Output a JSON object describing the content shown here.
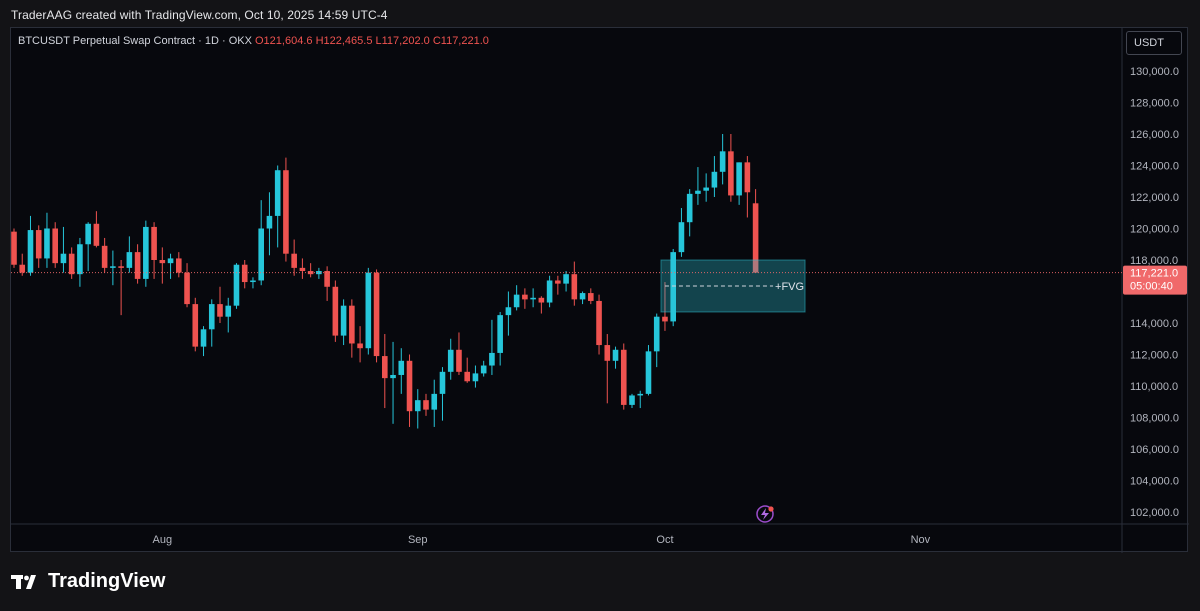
{
  "caption": "TraderAAG created with TradingView.com, Oct 10, 2025 14:59 UTC-4",
  "legend": {
    "symbol": "BTCUSDT Perpetual Swap Contract · 1D · OKX",
    "open": "O121,604.6",
    "high": "H122,465.5",
    "low": "L117,202.0",
    "close": "C117,221.0"
  },
  "currency_button": "USDT",
  "brand": "TradingView",
  "colors": {
    "up": "#26c6da",
    "down": "#ef5350",
    "fvg_zone": "#2ec4d6",
    "price_label": "#f0696a"
  },
  "chart_data": {
    "type": "candlestick",
    "symbol": "BTCUSDT",
    "interval": "1D",
    "exchange": "OKX",
    "y_ticks": [
      "130,000.0",
      "128,000.0",
      "126,000.0",
      "124,000.0",
      "122,000.0",
      "120,000.0",
      "118,000.0",
      "114,000.0",
      "112,000.0",
      "110,000.0",
      "108,000.0",
      "106,000.0",
      "104,000.0",
      "102,000.0"
    ],
    "x_ticks": [
      {
        "label": "Aug",
        "date": "2025-08-01"
      },
      {
        "label": "Sep",
        "date": "2025-09-01"
      },
      {
        "label": "Oct",
        "date": "2025-10-01"
      },
      {
        "label": "Nov",
        "date": "2025-11-01"
      }
    ],
    "first_date": "2025-07-14",
    "last_price": "117,221.0",
    "countdown": "05:00:40",
    "fvg": {
      "label": "+FVG",
      "top": 118000,
      "bottom": 114700,
      "mid": 116350,
      "start": "2025-10-01",
      "end": "2025-10-18"
    },
    "candles": [
      [
        119800,
        120000,
        117500,
        117700
      ],
      [
        117700,
        118400,
        117000,
        117200
      ],
      [
        117200,
        120800,
        117000,
        119900
      ],
      [
        119900,
        120200,
        117500,
        118100
      ],
      [
        118100,
        121000,
        117500,
        120000
      ],
      [
        120000,
        120400,
        117500,
        117800
      ],
      [
        117800,
        120100,
        117200,
        118400
      ],
      [
        118400,
        118800,
        116800,
        117100
      ],
      [
        117100,
        119400,
        116300,
        119000
      ],
      [
        119000,
        120400,
        117300,
        120300
      ],
      [
        120300,
        121100,
        118800,
        118900
      ],
      [
        118900,
        119400,
        117200,
        117500
      ],
      [
        117500,
        118600,
        116400,
        117600
      ],
      [
        117600,
        118000,
        114500,
        117500
      ],
      [
        117500,
        119500,
        117200,
        118500
      ],
      [
        118500,
        119000,
        116500,
        116800
      ],
      [
        116800,
        120500,
        116300,
        120100
      ],
      [
        120100,
        120400,
        116800,
        118000
      ],
      [
        118000,
        118800,
        116500,
        117800
      ],
      [
        117800,
        118400,
        116800,
        118100
      ],
      [
        118100,
        118500,
        116900,
        117200
      ],
      [
        117200,
        117800,
        115000,
        115200
      ],
      [
        115200,
        115600,
        112200,
        112500
      ],
      [
        112500,
        113800,
        111900,
        113600
      ],
      [
        113600,
        115500,
        112500,
        115200
      ],
      [
        115200,
        116300,
        114000,
        114400
      ],
      [
        114400,
        115600,
        113400,
        115100
      ],
      [
        115100,
        117800,
        114900,
        117700
      ],
      [
        117700,
        118000,
        116200,
        116600
      ],
      [
        116600,
        116900,
        116200,
        116700
      ],
      [
        116700,
        121800,
        116400,
        120000
      ],
      [
        120000,
        122300,
        118300,
        120800
      ],
      [
        120800,
        124000,
        118800,
        123700
      ],
      [
        123700,
        124500,
        117900,
        118400
      ],
      [
        118400,
        119300,
        117000,
        117500
      ],
      [
        117500,
        118100,
        116800,
        117300
      ],
      [
        117300,
        117800,
        116900,
        117100
      ],
      [
        117100,
        117500,
        116800,
        117300
      ],
      [
        117300,
        117600,
        115400,
        116300
      ],
      [
        116300,
        116700,
        112800,
        113200
      ],
      [
        113200,
        115500,
        112600,
        115100
      ],
      [
        115100,
        115500,
        111800,
        112700
      ],
      [
        112700,
        113800,
        111500,
        112400
      ],
      [
        112400,
        117500,
        112000,
        117200
      ],
      [
        117200,
        117400,
        111500,
        111900
      ],
      [
        111900,
        113300,
        108600,
        110500
      ],
      [
        110500,
        112800,
        107600,
        110700
      ],
      [
        110700,
        112400,
        109500,
        111600
      ],
      [
        111600,
        112000,
        107400,
        108400
      ],
      [
        108400,
        109800,
        107300,
        109100
      ],
      [
        109100,
        109500,
        108100,
        108500
      ],
      [
        108500,
        110400,
        107400,
        109500
      ],
      [
        109500,
        111200,
        107800,
        110900
      ],
      [
        110900,
        113000,
        110400,
        112300
      ],
      [
        112300,
        113400,
        110700,
        110900
      ],
      [
        110900,
        111800,
        110200,
        110300
      ],
      [
        110300,
        111300,
        109900,
        110800
      ],
      [
        110800,
        111600,
        110600,
        111300
      ],
      [
        111300,
        114200,
        110700,
        112100
      ],
      [
        112100,
        114700,
        111300,
        114500
      ],
      [
        114500,
        116000,
        113200,
        115000
      ],
      [
        115000,
        116400,
        114800,
        115800
      ],
      [
        115800,
        116200,
        114900,
        115500
      ],
      [
        115500,
        116200,
        115000,
        115600
      ],
      [
        115600,
        115700,
        114600,
        115300
      ],
      [
        115300,
        117000,
        115000,
        116700
      ],
      [
        116700,
        117000,
        115800,
        116500
      ],
      [
        116500,
        117300,
        116000,
        117100
      ],
      [
        117100,
        117900,
        115100,
        115500
      ],
      [
        115500,
        116000,
        115200,
        115900
      ],
      [
        115900,
        116200,
        115200,
        115400
      ],
      [
        115400,
        115800,
        112000,
        112600
      ],
      [
        112600,
        113300,
        108900,
        111600
      ],
      [
        111600,
        112500,
        111100,
        112300
      ],
      [
        112300,
        112700,
        108500,
        108800
      ],
      [
        108800,
        109500,
        108600,
        109400
      ],
      [
        109400,
        109700,
        108600,
        109500
      ],
      [
        109500,
        112600,
        109400,
        112200
      ],
      [
        112200,
        114600,
        111200,
        114400
      ],
      [
        114400,
        116600,
        113500,
        114100
      ],
      [
        114100,
        118700,
        113800,
        118500
      ],
      [
        118500,
        121300,
        118200,
        120400
      ],
      [
        120400,
        122500,
        119500,
        122200
      ],
      [
        122200,
        123900,
        121500,
        122400
      ],
      [
        122400,
        123500,
        121700,
        122600
      ],
      [
        122600,
        124600,
        122000,
        123600
      ],
      [
        123600,
        126000,
        122800,
        124900
      ],
      [
        124900,
        126000,
        121700,
        122100
      ],
      [
        122100,
        124200,
        121500,
        124200
      ],
      [
        124200,
        124600,
        120700,
        122300
      ],
      [
        121600,
        122500,
        117200,
        117200
      ]
    ]
  }
}
